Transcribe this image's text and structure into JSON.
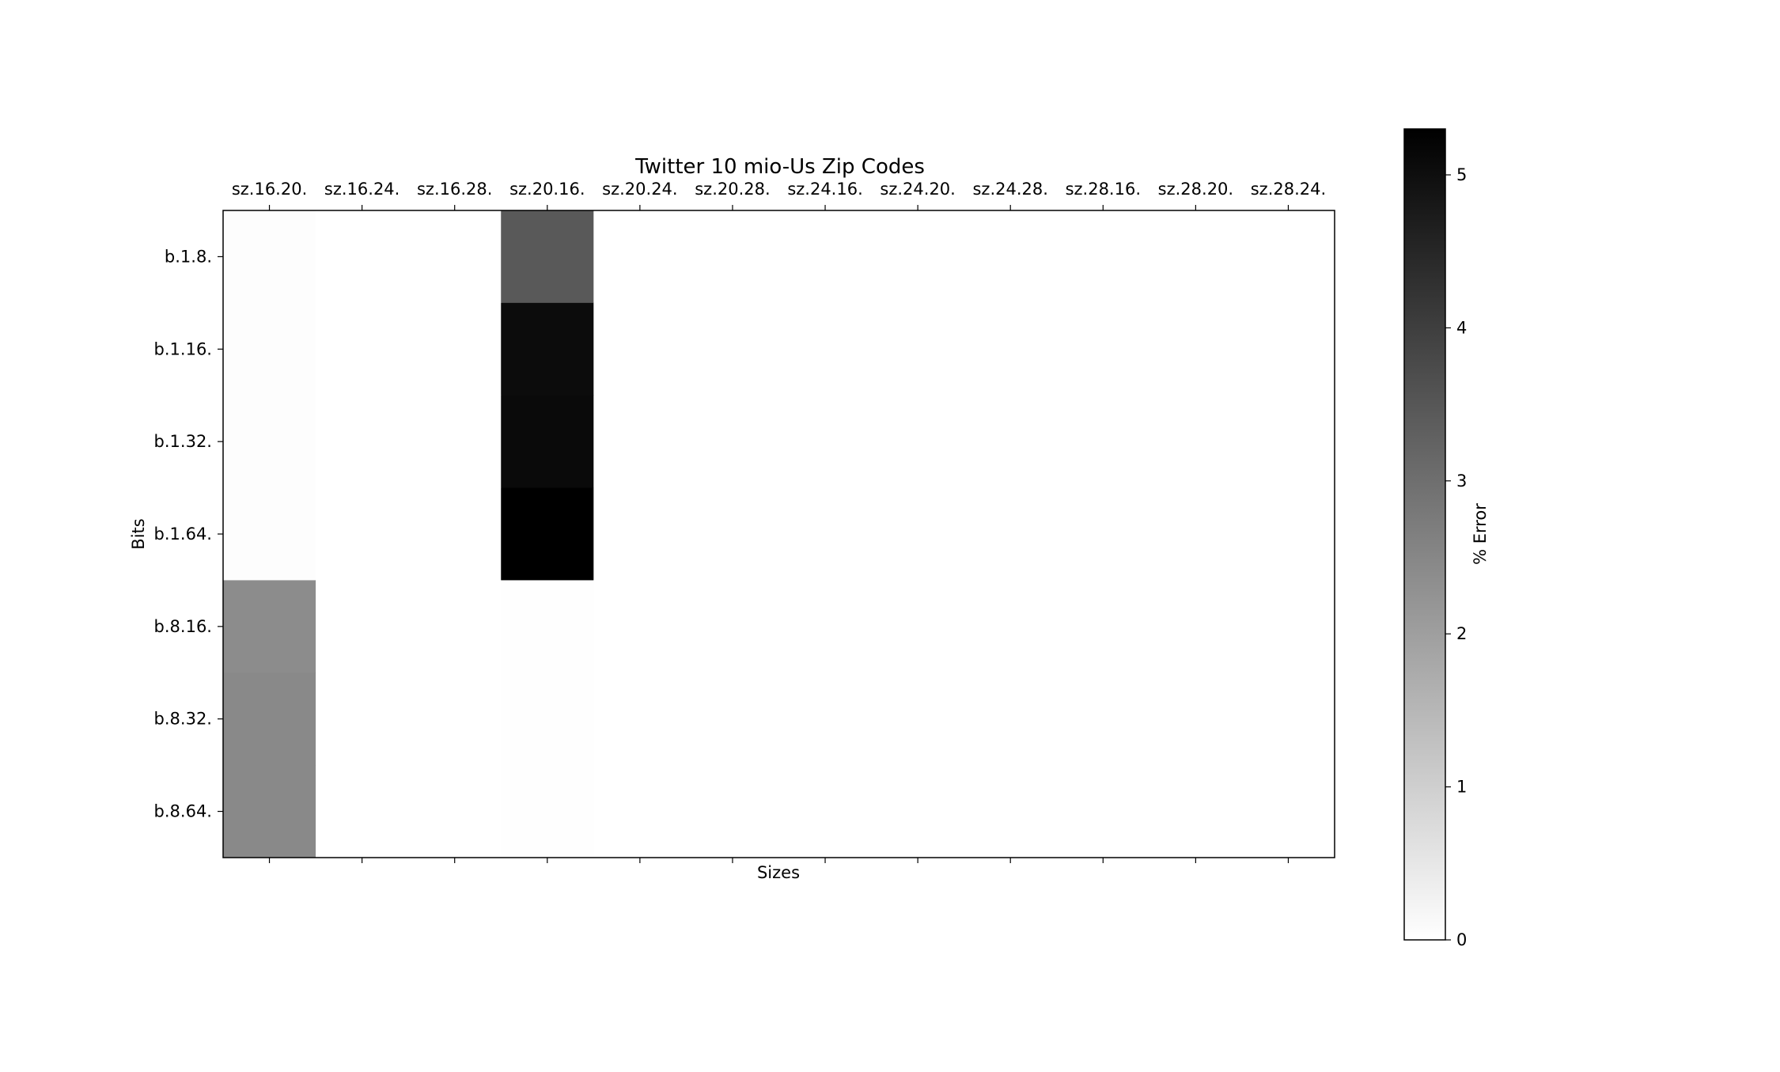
{
  "chart_data": {
    "type": "heatmap",
    "title": "Twitter 10 mio-Us Zip Codes",
    "xlabel": "Sizes",
    "ylabel": "Bits",
    "colorbar_label": "% Error",
    "x_categories": [
      "sz.16.20.",
      "sz.16.24.",
      "sz.16.28.",
      "sz.20.16.",
      "sz.20.24.",
      "sz.20.28.",
      "sz.24.16.",
      "sz.24.20.",
      "sz.24.28.",
      "sz.28.16.",
      "sz.28.20.",
      "sz.28.24."
    ],
    "y_categories": [
      "b.1.8.",
      "b.1.16.",
      "b.1.32.",
      "b.1.64.",
      "b.8.16.",
      "b.8.32.",
      "b.8.64."
    ],
    "values": [
      [
        0.05,
        0,
        0,
        3.45,
        0,
        0,
        0,
        0,
        0,
        0,
        0,
        0
      ],
      [
        0.05,
        0,
        0,
        5.05,
        0,
        0,
        0,
        0,
        0,
        0,
        0,
        0
      ],
      [
        0.05,
        0,
        0,
        5.1,
        0,
        0,
        0,
        0,
        0,
        0,
        0,
        0
      ],
      [
        0.05,
        0,
        0,
        5.3,
        0,
        0,
        0,
        0,
        0,
        0,
        0,
        0
      ],
      [
        2.4,
        0,
        0,
        0.02,
        0,
        0,
        0,
        0,
        0,
        0,
        0,
        0
      ],
      [
        2.45,
        0,
        0,
        0.02,
        0,
        0,
        0,
        0,
        0,
        0,
        0,
        0
      ],
      [
        2.45,
        0,
        0,
        0.02,
        0,
        0,
        0,
        0,
        0,
        0,
        0,
        0
      ]
    ],
    "color_range": [
      0,
      5.3
    ],
    "colorbar_ticks": [
      0,
      1,
      2,
      3,
      4,
      5
    ],
    "colormap": [
      "#ffffff",
      "#000000"
    ],
    "grid": false,
    "x_tick_position": "top"
  }
}
